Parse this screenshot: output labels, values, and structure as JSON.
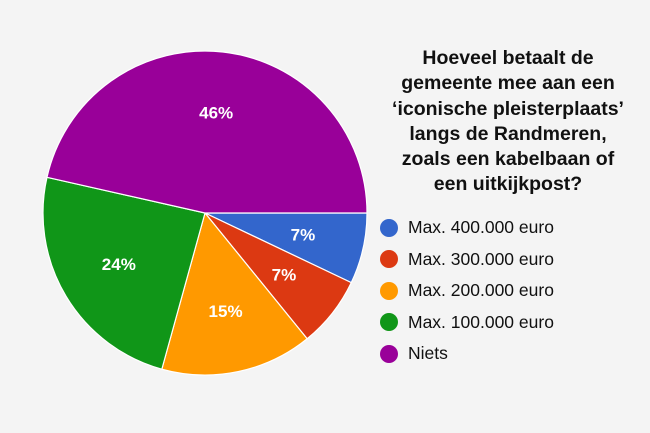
{
  "chart_data": {
    "type": "pie",
    "title_lines": [
      "Hoeveel betaalt de",
      "gemeente mee aan een",
      "‘iconische pleisterplaats’",
      "langs de Randmeren,",
      "zoals een kabelbaan of",
      "een uitkijkpost?"
    ],
    "slices": [
      {
        "label": "Max. 400.000 euro",
        "value": 7,
        "display": "7%",
        "color": "#3366cc"
      },
      {
        "label": "Max. 300.000 euro",
        "value": 7,
        "display": "7%",
        "color": "#dc3912"
      },
      {
        "label": "Max. 200.000 euro",
        "value": 15,
        "display": "15%",
        "color": "#ff9900"
      },
      {
        "label": "Max. 100.000 euro",
        "value": 24,
        "display": "24%",
        "color": "#109618"
      },
      {
        "label": "Niets",
        "value": 46,
        "display": "46%",
        "color": "#990099"
      }
    ],
    "start_angle_deg": 90,
    "direction": "clockwise",
    "legend_position": "right"
  }
}
